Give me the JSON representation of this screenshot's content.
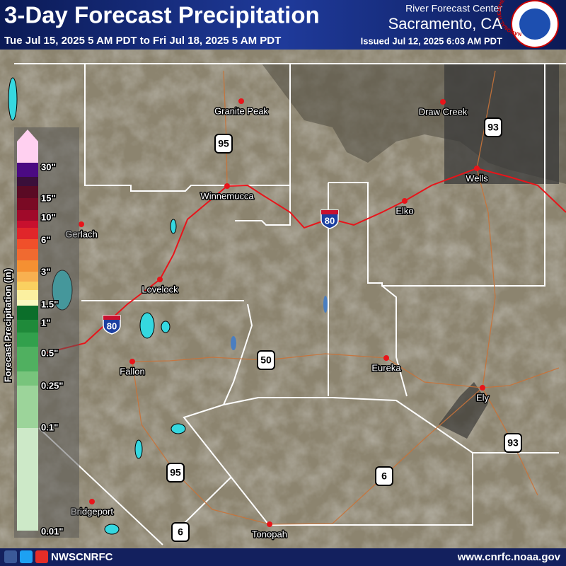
{
  "header": {
    "title": "3-Day Forecast Precipitation",
    "period": "Tue Jul 15, 2025 5 AM PDT to Fri Jul 18, 2025 5 AM PDT",
    "office_line1": "River Forecast Center",
    "office_line2": "Sacramento, CA",
    "issued": "Issued Jul 12, 2025 6:03 AM PDT",
    "logo_text": "NATIONAL WEATHER SERVICE"
  },
  "legend": {
    "title": "Forecast Precipitation (in)",
    "labels": [
      "30\"",
      "15\"",
      "10\"",
      "6\"",
      "3\"",
      "1.5\"",
      "1\"",
      "0.5\"",
      "0.25\"",
      "0.1\"",
      "0.01\""
    ]
  },
  "cities": [
    "Granite Peak",
    "Draw Creek",
    "Winnemucca",
    "Elko",
    "Wells",
    "Gerlach",
    "Lovelock",
    "Fallon",
    "Eureka",
    "Ely",
    "Bridgeport",
    "Tonopah"
  ],
  "shields": [
    "95",
    "80",
    "80",
    "50",
    "93",
    "93",
    "6",
    "95",
    "6"
  ],
  "footer": {
    "handle": "NWSCNRFC",
    "url": "www.cnrfc.noaa.gov"
  }
}
